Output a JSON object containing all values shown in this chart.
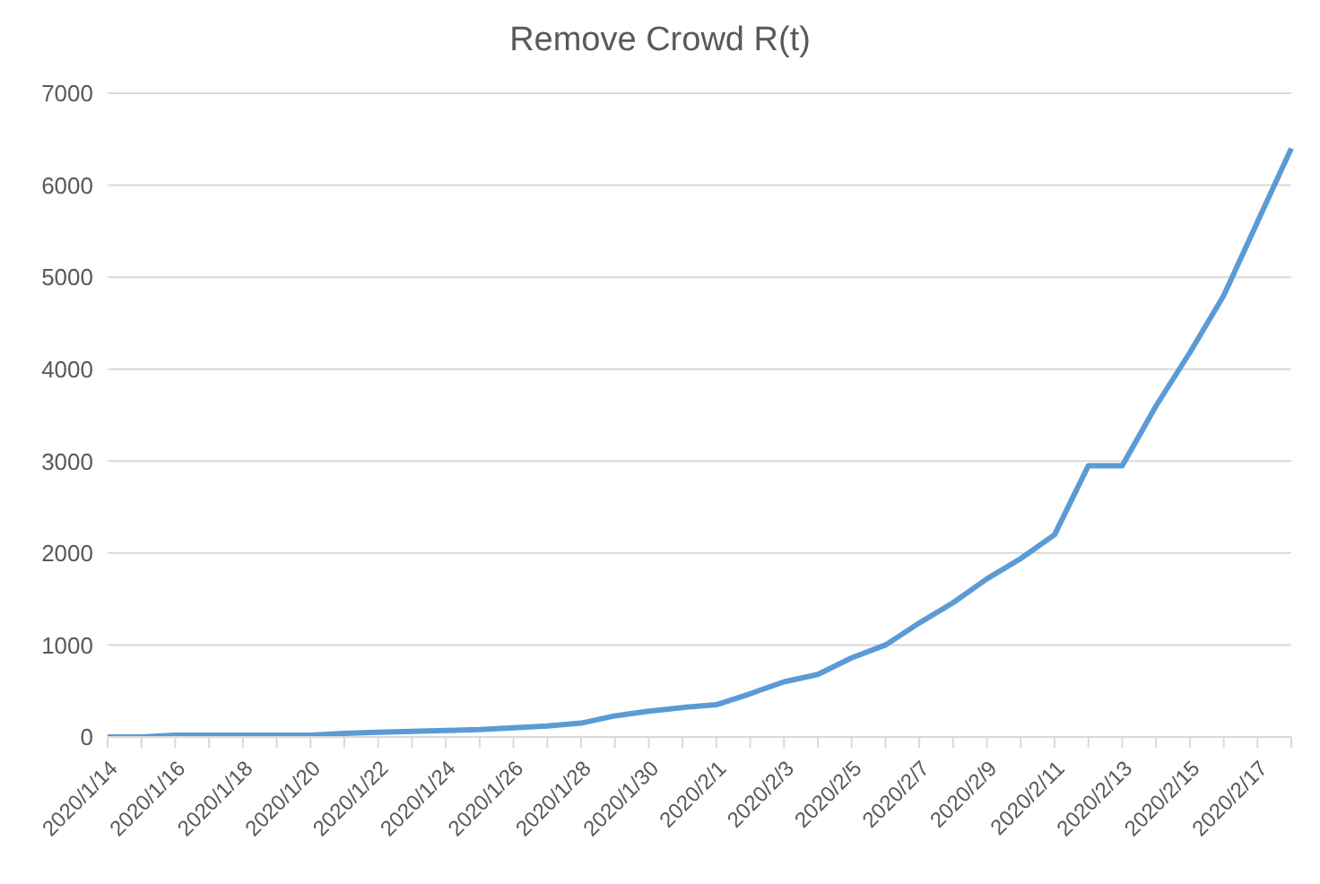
{
  "chart_data": {
    "type": "line",
    "title": "Remove Crowd R(t)",
    "categories": [
      "2020/1/14",
      null,
      "2020/1/16",
      null,
      "2020/1/18",
      null,
      "2020/1/20",
      null,
      "2020/1/22",
      null,
      "2020/1/24",
      null,
      "2020/1/26",
      null,
      "2020/1/28",
      null,
      "2020/1/30",
      null,
      "2020/2/1",
      null,
      "2020/2/3",
      null,
      "2020/2/5",
      null,
      "2020/2/7",
      null,
      "2020/2/9",
      null,
      "2020/2/11",
      null,
      "2020/2/13",
      null,
      "2020/2/15",
      null,
      "2020/2/17",
      null
    ],
    "series": [
      {
        "color": "#5b9bd5",
        "values": [
          0,
          0,
          20,
          20,
          20,
          20,
          20,
          40,
          50,
          60,
          70,
          80,
          100,
          120,
          150,
          230,
          280,
          320,
          350,
          470,
          600,
          680,
          860,
          1000,
          1240,
          1460,
          1720,
          1940,
          2200,
          2950,
          2950,
          3600,
          4180,
          4800,
          5600,
          6400
        ]
      }
    ],
    "ylim": [
      0,
      7000
    ],
    "yticks": [
      0,
      1000,
      2000,
      3000,
      4000,
      5000,
      6000,
      7000
    ],
    "grid": "y",
    "marker": "none",
    "line_style": "solid"
  }
}
